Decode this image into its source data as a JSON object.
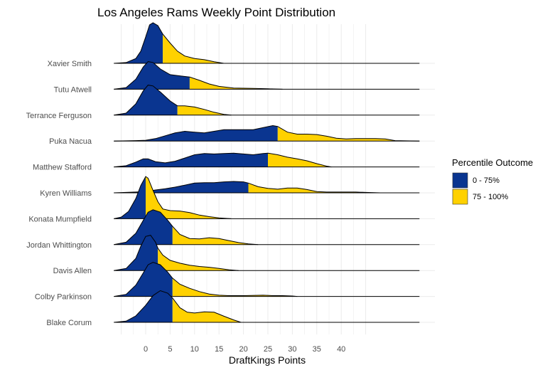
{
  "chart_data": {
    "type": "ridgeline",
    "title": "Los Angeles Rams Weekly Point Distribution",
    "xlabel": "DraftKings Points",
    "ylabel": "",
    "xlim": [
      -5,
      45
    ],
    "x_ticks": [
      0,
      5,
      10,
      15,
      20,
      25,
      30,
      35,
      40
    ],
    "x_tick_labels": [
      "0",
      "5",
      "10",
      "15",
      "20",
      "25",
      "30",
      "35",
      "40"
    ],
    "grid": true,
    "legend": {
      "title": "Percentile Outcome",
      "placement": "right",
      "entries": [
        {
          "label": "0 - 75%",
          "color": "#0a3590"
        },
        {
          "label": "75 - 100%",
          "color": "#ffd100"
        }
      ]
    },
    "colors": {
      "lower": "#0a3590",
      "upper": "#ffd100",
      "outline": "#000000",
      "grid": "#ebebeb"
    },
    "series": [
      {
        "name": "Xavier Smith",
        "p75": 3.5,
        "line_start": -6.5,
        "line_end": 56,
        "density": [
          [
            -6.5,
            0
          ],
          [
            -4,
            0.02
          ],
          [
            -2,
            0.12
          ],
          [
            -1,
            0.3
          ],
          [
            0,
            0.65
          ],
          [
            0.8,
            0.95
          ],
          [
            1.5,
            1.0
          ],
          [
            2.5,
            0.93
          ],
          [
            3.5,
            0.72
          ],
          [
            5,
            0.5
          ],
          [
            6.5,
            0.3
          ],
          [
            8,
            0.18
          ],
          [
            10,
            0.12
          ],
          [
            12,
            0.09
          ],
          [
            14,
            0.04
          ],
          [
            16,
            0.0
          ]
        ]
      },
      {
        "name": "Tutu Atwell",
        "p75": 9,
        "line_start": -6.5,
        "line_end": 56,
        "density": [
          [
            -6.5,
            0
          ],
          [
            -4,
            0.04
          ],
          [
            -2,
            0.25
          ],
          [
            -0.5,
            0.55
          ],
          [
            0.5,
            0.68
          ],
          [
            1.5,
            0.66
          ],
          [
            3,
            0.5
          ],
          [
            5,
            0.36
          ],
          [
            7,
            0.33
          ],
          [
            9,
            0.3
          ],
          [
            11,
            0.22
          ],
          [
            13,
            0.13
          ],
          [
            15,
            0.07
          ],
          [
            18,
            0.03
          ],
          [
            22,
            0.02
          ],
          [
            25,
            0.01
          ],
          [
            28,
            0
          ]
        ]
      },
      {
        "name": "Terrance Ferguson",
        "p75": 6.5,
        "line_start": -6.5,
        "line_end": 56,
        "density": [
          [
            -6.5,
            0
          ],
          [
            -4,
            0.05
          ],
          [
            -2,
            0.28
          ],
          [
            -0.5,
            0.6
          ],
          [
            0.5,
            0.74
          ],
          [
            1.5,
            0.72
          ],
          [
            3,
            0.57
          ],
          [
            5,
            0.35
          ],
          [
            6.5,
            0.23
          ],
          [
            8,
            0.23
          ],
          [
            10,
            0.2
          ],
          [
            12,
            0.14
          ],
          [
            14,
            0.07
          ],
          [
            16,
            0.02
          ],
          [
            17.5,
            0
          ]
        ]
      },
      {
        "name": "Puka Nacua",
        "p75": 27,
        "line_start": -6.5,
        "line_end": 56,
        "density": [
          [
            -6.5,
            0
          ],
          [
            -2,
            0.01
          ],
          [
            0,
            0.02
          ],
          [
            2,
            0.06
          ],
          [
            4,
            0.13
          ],
          [
            6,
            0.2
          ],
          [
            8,
            0.24
          ],
          [
            10,
            0.22
          ],
          [
            12,
            0.2
          ],
          [
            14,
            0.24
          ],
          [
            16,
            0.28
          ],
          [
            18,
            0.28
          ],
          [
            20,
            0.28
          ],
          [
            22,
            0.28
          ],
          [
            24,
            0.33
          ],
          [
            26,
            0.38
          ],
          [
            27,
            0.36
          ],
          [
            29,
            0.22
          ],
          [
            31,
            0.17
          ],
          [
            33,
            0.17
          ],
          [
            35,
            0.16
          ],
          [
            37,
            0.12
          ],
          [
            39,
            0.07
          ],
          [
            41,
            0.05
          ],
          [
            43,
            0.06
          ],
          [
            45,
            0.06
          ],
          [
            47,
            0.06
          ],
          [
            49,
            0.05
          ],
          [
            51,
            0.01
          ],
          [
            56,
            0
          ]
        ]
      },
      {
        "name": "Matthew Stafford",
        "p75": 25,
        "line_start": -6.5,
        "line_end": 56,
        "density": [
          [
            -6.5,
            0
          ],
          [
            -4,
            0.03
          ],
          [
            -2,
            0.12
          ],
          [
            -0.5,
            0.2
          ],
          [
            0.5,
            0.2
          ],
          [
            2,
            0.13
          ],
          [
            4,
            0.1
          ],
          [
            6,
            0.14
          ],
          [
            8,
            0.22
          ],
          [
            10,
            0.3
          ],
          [
            12,
            0.33
          ],
          [
            14,
            0.32
          ],
          [
            16,
            0.33
          ],
          [
            18,
            0.34
          ],
          [
            20,
            0.32
          ],
          [
            22,
            0.3
          ],
          [
            24,
            0.33
          ],
          [
            25,
            0.34
          ],
          [
            27,
            0.3
          ],
          [
            29,
            0.24
          ],
          [
            31,
            0.2
          ],
          [
            33,
            0.15
          ],
          [
            35,
            0.08
          ],
          [
            37,
            0.02
          ],
          [
            38,
            0
          ]
        ]
      },
      {
        "name": "Kyren Williams",
        "p75": 21,
        "line_start": -6.5,
        "line_end": 56,
        "density": [
          [
            -6.5,
            0
          ],
          [
            -4,
            0.01
          ],
          [
            -2,
            0.02
          ],
          [
            0,
            0.03
          ],
          [
            2,
            0.07
          ],
          [
            4,
            0.1
          ],
          [
            6,
            0.14
          ],
          [
            8,
            0.19
          ],
          [
            10,
            0.24
          ],
          [
            12,
            0.25
          ],
          [
            14,
            0.25
          ],
          [
            16,
            0.27
          ],
          [
            18,
            0.28
          ],
          [
            20,
            0.27
          ],
          [
            21,
            0.24
          ],
          [
            23,
            0.15
          ],
          [
            25,
            0.11
          ],
          [
            27,
            0.09
          ],
          [
            29,
            0.12
          ],
          [
            31,
            0.12
          ],
          [
            33,
            0.08
          ],
          [
            35,
            0.03
          ],
          [
            37,
            0.02
          ],
          [
            39,
            0.02
          ],
          [
            41,
            0.02
          ],
          [
            43,
            0.02
          ],
          [
            45,
            0.01
          ],
          [
            48,
            0
          ]
        ]
      },
      {
        "name": "Konata Mumpfield",
        "p75": 0,
        "line_start": -6.5,
        "line_end": 56,
        "density": [
          [
            -6.5,
            0
          ],
          [
            -5,
            0.04
          ],
          [
            -3.5,
            0.18
          ],
          [
            -2,
            0.5
          ],
          [
            -1,
            0.82
          ],
          [
            0,
            1.04
          ],
          [
            0.5,
            1.0
          ],
          [
            1.5,
            0.7
          ],
          [
            2.5,
            0.42
          ],
          [
            3.5,
            0.24
          ],
          [
            5,
            0.2
          ],
          [
            7,
            0.19
          ],
          [
            9,
            0.15
          ],
          [
            11,
            0.09
          ],
          [
            13,
            0.05
          ],
          [
            15,
            0.02
          ],
          [
            17.5,
            0
          ]
        ]
      },
      {
        "name": "Jordan Whittington",
        "p75": 5.5,
        "line_start": -6.5,
        "line_end": 56,
        "density": [
          [
            -6.5,
            0
          ],
          [
            -4,
            0.06
          ],
          [
            -2,
            0.28
          ],
          [
            -0.5,
            0.6
          ],
          [
            0.5,
            0.8
          ],
          [
            1.5,
            0.86
          ],
          [
            3,
            0.8
          ],
          [
            4.5,
            0.6
          ],
          [
            5.5,
            0.45
          ],
          [
            7,
            0.25
          ],
          [
            9,
            0.15
          ],
          [
            11,
            0.14
          ],
          [
            13,
            0.17
          ],
          [
            15,
            0.15
          ],
          [
            17,
            0.1
          ],
          [
            19,
            0.05
          ],
          [
            21,
            0.02
          ],
          [
            23,
            0
          ]
        ]
      },
      {
        "name": "Davis Allen",
        "p75": 2.5,
        "line_start": -6.5,
        "line_end": 56,
        "density": [
          [
            -6.5,
            0
          ],
          [
            -4,
            0.05
          ],
          [
            -2,
            0.3
          ],
          [
            -1,
            0.6
          ],
          [
            0,
            0.84
          ],
          [
            1,
            0.87
          ],
          [
            2,
            0.7
          ],
          [
            2.5,
            0.55
          ],
          [
            3.5,
            0.38
          ],
          [
            5,
            0.25
          ],
          [
            7,
            0.18
          ],
          [
            9,
            0.13
          ],
          [
            11,
            0.1
          ],
          [
            13,
            0.08
          ],
          [
            15,
            0.05
          ],
          [
            17,
            0.02
          ],
          [
            19,
            0
          ]
        ]
      },
      {
        "name": "Colby Parkinson",
        "p75": 5.5,
        "line_start": -6.5,
        "line_end": 56,
        "density": [
          [
            -6.5,
            0
          ],
          [
            -4,
            0.05
          ],
          [
            -2,
            0.28
          ],
          [
            -0.5,
            0.58
          ],
          [
            0.5,
            0.78
          ],
          [
            1.5,
            0.84
          ],
          [
            3,
            0.78
          ],
          [
            4.5,
            0.6
          ],
          [
            5.5,
            0.45
          ],
          [
            7,
            0.3
          ],
          [
            9,
            0.2
          ],
          [
            11,
            0.12
          ],
          [
            13,
            0.06
          ],
          [
            15,
            0.03
          ],
          [
            17,
            0.02
          ],
          [
            20,
            0.02
          ],
          [
            24,
            0.03
          ],
          [
            26,
            0.02
          ],
          [
            28,
            0.02
          ],
          [
            30,
            0.01
          ],
          [
            31,
            0
          ]
        ]
      },
      {
        "name": "Blake Corum",
        "p75": 5.5,
        "line_start": -6.5,
        "line_end": 56,
        "density": [
          [
            -6.5,
            0
          ],
          [
            -4,
            0.03
          ],
          [
            -2,
            0.16
          ],
          [
            0,
            0.42
          ],
          [
            1.5,
            0.66
          ],
          [
            3,
            0.78
          ],
          [
            4.5,
            0.72
          ],
          [
            5.5,
            0.6
          ],
          [
            7,
            0.36
          ],
          [
            8.5,
            0.25
          ],
          [
            10,
            0.23
          ],
          [
            12,
            0.26
          ],
          [
            14,
            0.25
          ],
          [
            16,
            0.15
          ],
          [
            18,
            0.06
          ],
          [
            19.5,
            0
          ]
        ]
      }
    ]
  }
}
